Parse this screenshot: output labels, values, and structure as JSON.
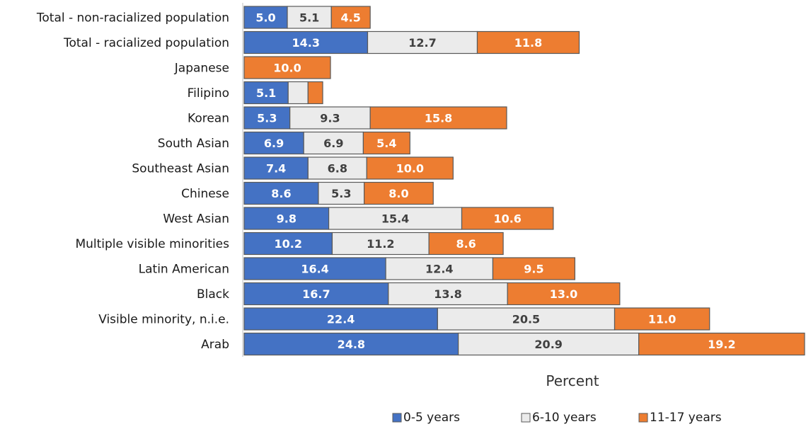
{
  "chart_data": {
    "type": "bar",
    "orientation": "horizontal",
    "stacked": true,
    "categories": [
      "Total - non-racialized population",
      "Total - racialized population",
      "Japanese",
      "Filipino",
      "Korean",
      "South Asian",
      "Southeast Asian",
      "Chinese",
      "West Asian",
      "Multiple visible minorities",
      "Latin American",
      "Black",
      "Visible minority, n.i.e.",
      "Arab"
    ],
    "series": [
      {
        "name": "0-5 years",
        "color": "#4472c4",
        "label_color": "#ffffff",
        "values": [
          5.0,
          14.3,
          0,
          5.1,
          5.3,
          6.9,
          7.4,
          8.6,
          9.8,
          10.2,
          16.4,
          16.7,
          22.4,
          24.8
        ],
        "labels": [
          "5.0",
          "14.3",
          "",
          "5.1",
          "5.3",
          "6.9",
          "7.4",
          "8.6",
          "9.8",
          "10.2",
          "16.4",
          "16.7",
          "22.4",
          "24.8"
        ]
      },
      {
        "name": "6-10 years",
        "color": "#ebebeb",
        "label_color": "#404040",
        "values": [
          5.1,
          12.7,
          0,
          2.3,
          9.3,
          6.9,
          6.8,
          5.3,
          15.4,
          11.2,
          12.4,
          13.8,
          20.5,
          20.9
        ],
        "labels": [
          "5.1",
          "12.7",
          "",
          "",
          "9.3",
          "6.9",
          "6.8",
          "5.3",
          "15.4",
          "11.2",
          "12.4",
          "13.8",
          "20.5",
          "20.9"
        ]
      },
      {
        "name": "11-17 years",
        "color": "#ed7d31",
        "label_color": "#ffffff",
        "values": [
          4.5,
          11.8,
          10.0,
          1.7,
          15.8,
          5.4,
          10.0,
          8.0,
          10.6,
          8.6,
          9.5,
          13.0,
          11.0,
          19.2
        ],
        "labels": [
          "4.5",
          "11.8",
          "10.0",
          "",
          "15.8",
          "5.4",
          "10.0",
          "8.0",
          "10.6",
          "8.6",
          "9.5",
          "13.0",
          "11.0",
          "19.2"
        ]
      }
    ],
    "xlabel": "Percent",
    "xlim": [
      0,
      64.9
    ],
    "grid": false,
    "legend_position": "bottom-right"
  }
}
